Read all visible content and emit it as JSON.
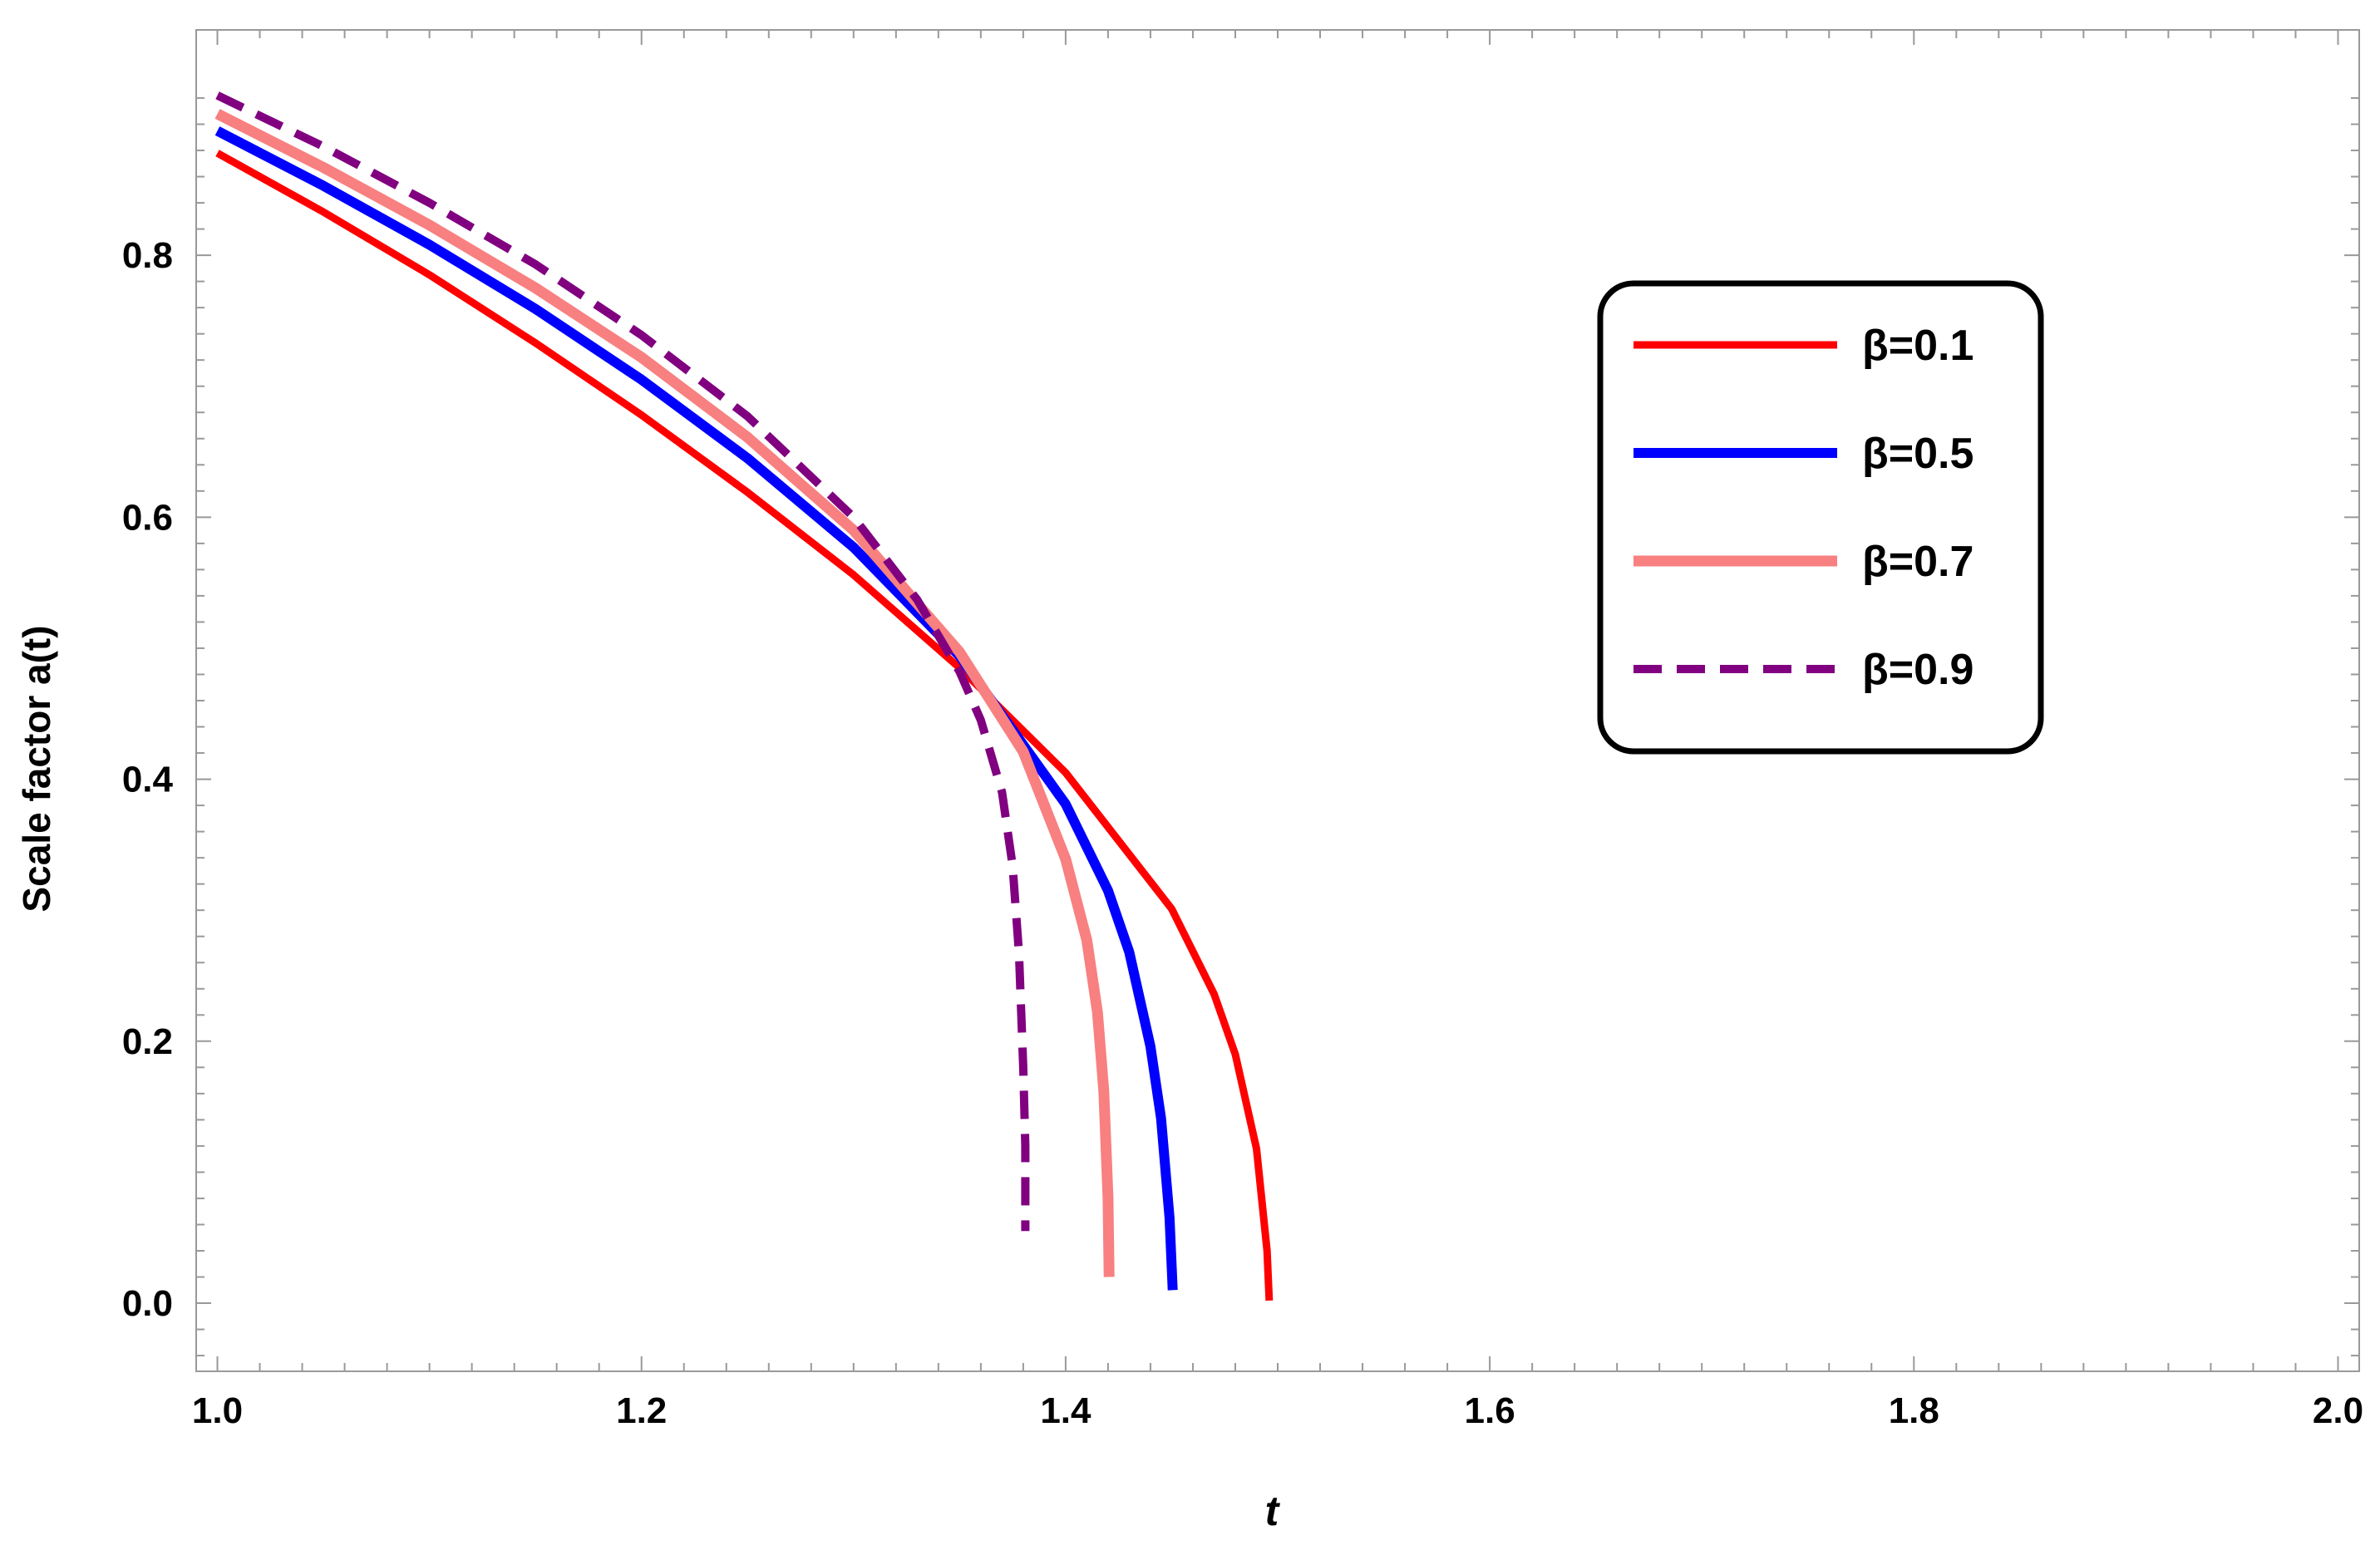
{
  "chart_data": {
    "type": "line",
    "title": "",
    "xlabel": "t",
    "ylabel": "Scale factor a(t)",
    "xlim": [
      0.99,
      2.01
    ],
    "ylim": [
      -0.052,
      0.972
    ],
    "x_ticks": [
      "1.0",
      "1.2",
      "1.4",
      "1.6",
      "1.8",
      "2.0"
    ],
    "y_ticks": [
      "0.0",
      "0.2",
      "0.4",
      "0.6",
      "0.8"
    ],
    "grid": false,
    "legend_position": "top-right",
    "series": [
      {
        "name": "β=0.1",
        "color": "#ff0000",
        "dash": "solid",
        "points": [
          [
            1.0,
            0.878
          ],
          [
            1.05,
            0.833
          ],
          [
            1.1,
            0.785
          ],
          [
            1.15,
            0.733
          ],
          [
            1.2,
            0.678
          ],
          [
            1.25,
            0.619
          ],
          [
            1.3,
            0.556
          ],
          [
            1.35,
            0.485
          ],
          [
            1.4,
            0.405
          ],
          [
            1.45,
            0.301
          ],
          [
            1.47,
            0.236
          ],
          [
            1.48,
            0.19
          ],
          [
            1.49,
            0.118
          ],
          [
            1.495,
            0.04
          ],
          [
            1.496,
            0.002
          ]
        ]
      },
      {
        "name": "β=0.5",
        "color": "#0000ff",
        "dash": "solid",
        "points": [
          [
            1.0,
            0.895
          ],
          [
            1.05,
            0.853
          ],
          [
            1.1,
            0.808
          ],
          [
            1.15,
            0.759
          ],
          [
            1.2,
            0.705
          ],
          [
            1.25,
            0.645
          ],
          [
            1.3,
            0.577
          ],
          [
            1.35,
            0.494
          ],
          [
            1.4,
            0.381
          ],
          [
            1.42,
            0.315
          ],
          [
            1.43,
            0.268
          ],
          [
            1.44,
            0.196
          ],
          [
            1.445,
            0.141
          ],
          [
            1.449,
            0.065
          ],
          [
            1.4505,
            0.01
          ]
        ]
      },
      {
        "name": "β=0.7",
        "color": "#f88080",
        "dash": "solid",
        "points": [
          [
            1.0,
            0.908
          ],
          [
            1.05,
            0.867
          ],
          [
            1.1,
            0.823
          ],
          [
            1.15,
            0.775
          ],
          [
            1.2,
            0.722
          ],
          [
            1.25,
            0.661
          ],
          [
            1.3,
            0.59
          ],
          [
            1.35,
            0.497
          ],
          [
            1.38,
            0.421
          ],
          [
            1.4,
            0.339
          ],
          [
            1.41,
            0.277
          ],
          [
            1.415,
            0.222
          ],
          [
            1.418,
            0.162
          ],
          [
            1.42,
            0.08
          ],
          [
            1.4205,
            0.02
          ]
        ]
      },
      {
        "name": "β=0.9",
        "color": "#800080",
        "dash": "dashed",
        "points": [
          [
            1.0,
            0.922
          ],
          [
            1.05,
            0.883
          ],
          [
            1.1,
            0.84
          ],
          [
            1.15,
            0.793
          ],
          [
            1.2,
            0.739
          ],
          [
            1.25,
            0.677
          ],
          [
            1.3,
            0.6
          ],
          [
            1.33,
            0.537
          ],
          [
            1.35,
            0.482
          ],
          [
            1.36,
            0.445
          ],
          [
            1.37,
            0.39
          ],
          [
            1.375,
            0.334
          ],
          [
            1.378,
            0.267
          ],
          [
            1.38,
            0.18
          ],
          [
            1.381,
            0.12
          ],
          [
            1.381,
            0.055
          ]
        ]
      }
    ]
  }
}
